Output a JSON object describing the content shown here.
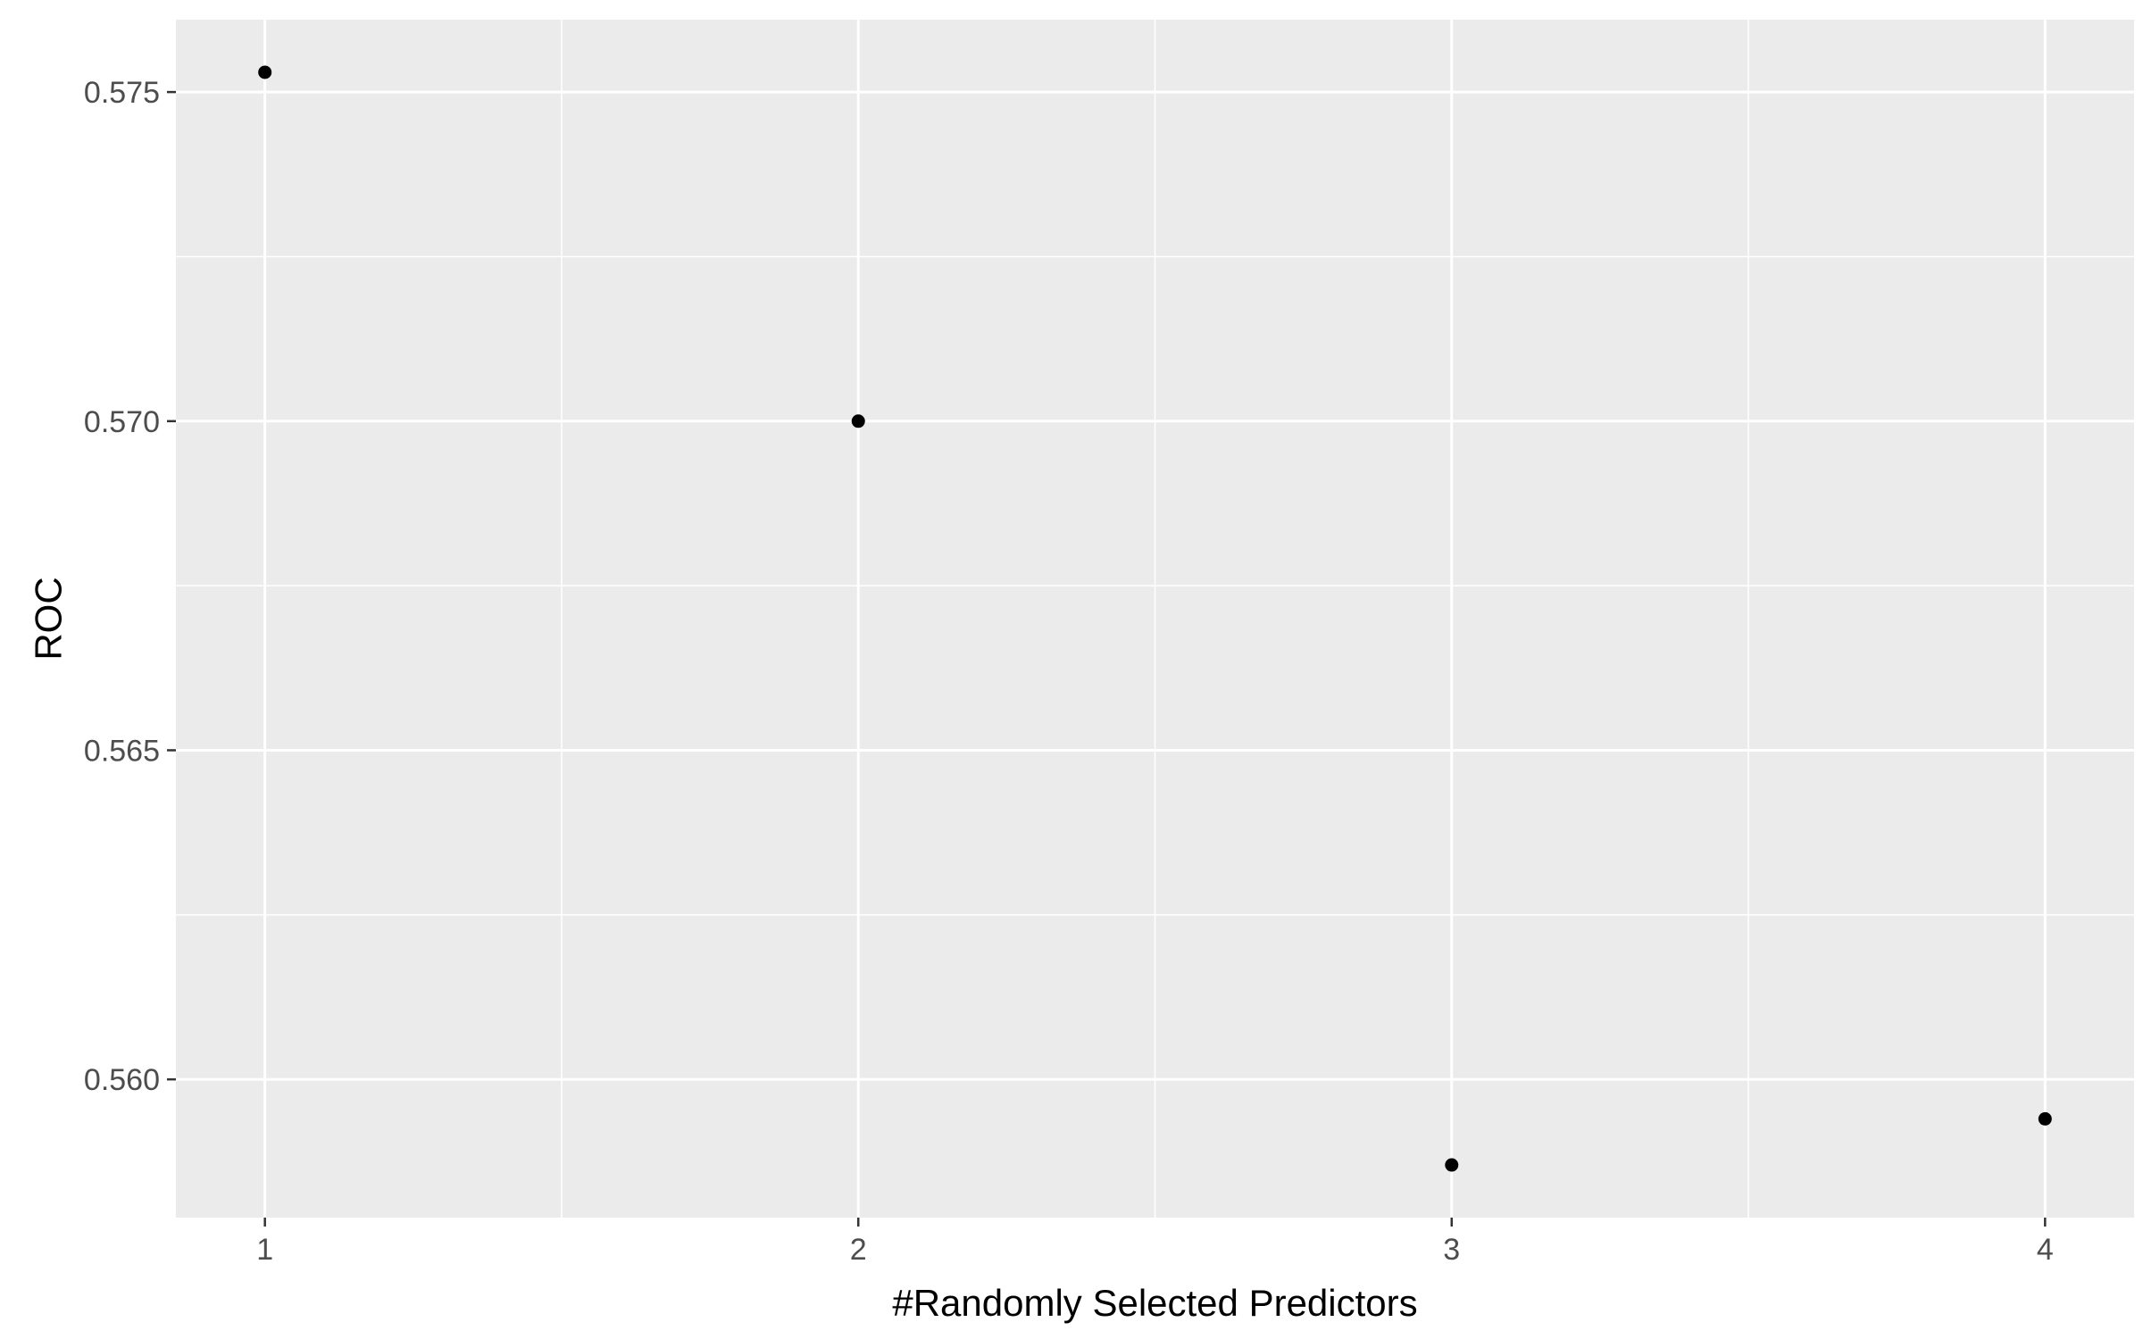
{
  "chart_data": {
    "type": "scatter",
    "title": "",
    "xlabel": "#Randomly Selected Predictors",
    "ylabel": "ROC",
    "x": [
      1,
      2,
      3,
      4
    ],
    "y": [
      0.5753,
      0.57,
      0.5587,
      0.5594
    ],
    "x_ticks": [
      "1",
      "2",
      "3",
      "4"
    ],
    "y_ticks": [
      "0.560",
      "0.565",
      "0.570",
      "0.575"
    ],
    "xlim": [
      0.85,
      4.15
    ],
    "ylim": [
      0.5579,
      0.5761
    ],
    "grid": true,
    "legend": "none",
    "colors": {
      "panel_background": "#ebebeb",
      "grid_major": "#ffffff",
      "grid_minor": "#f5f5f5",
      "point": "#000000",
      "tick_label": "#4d4d4d",
      "axis_title": "#000000"
    }
  }
}
